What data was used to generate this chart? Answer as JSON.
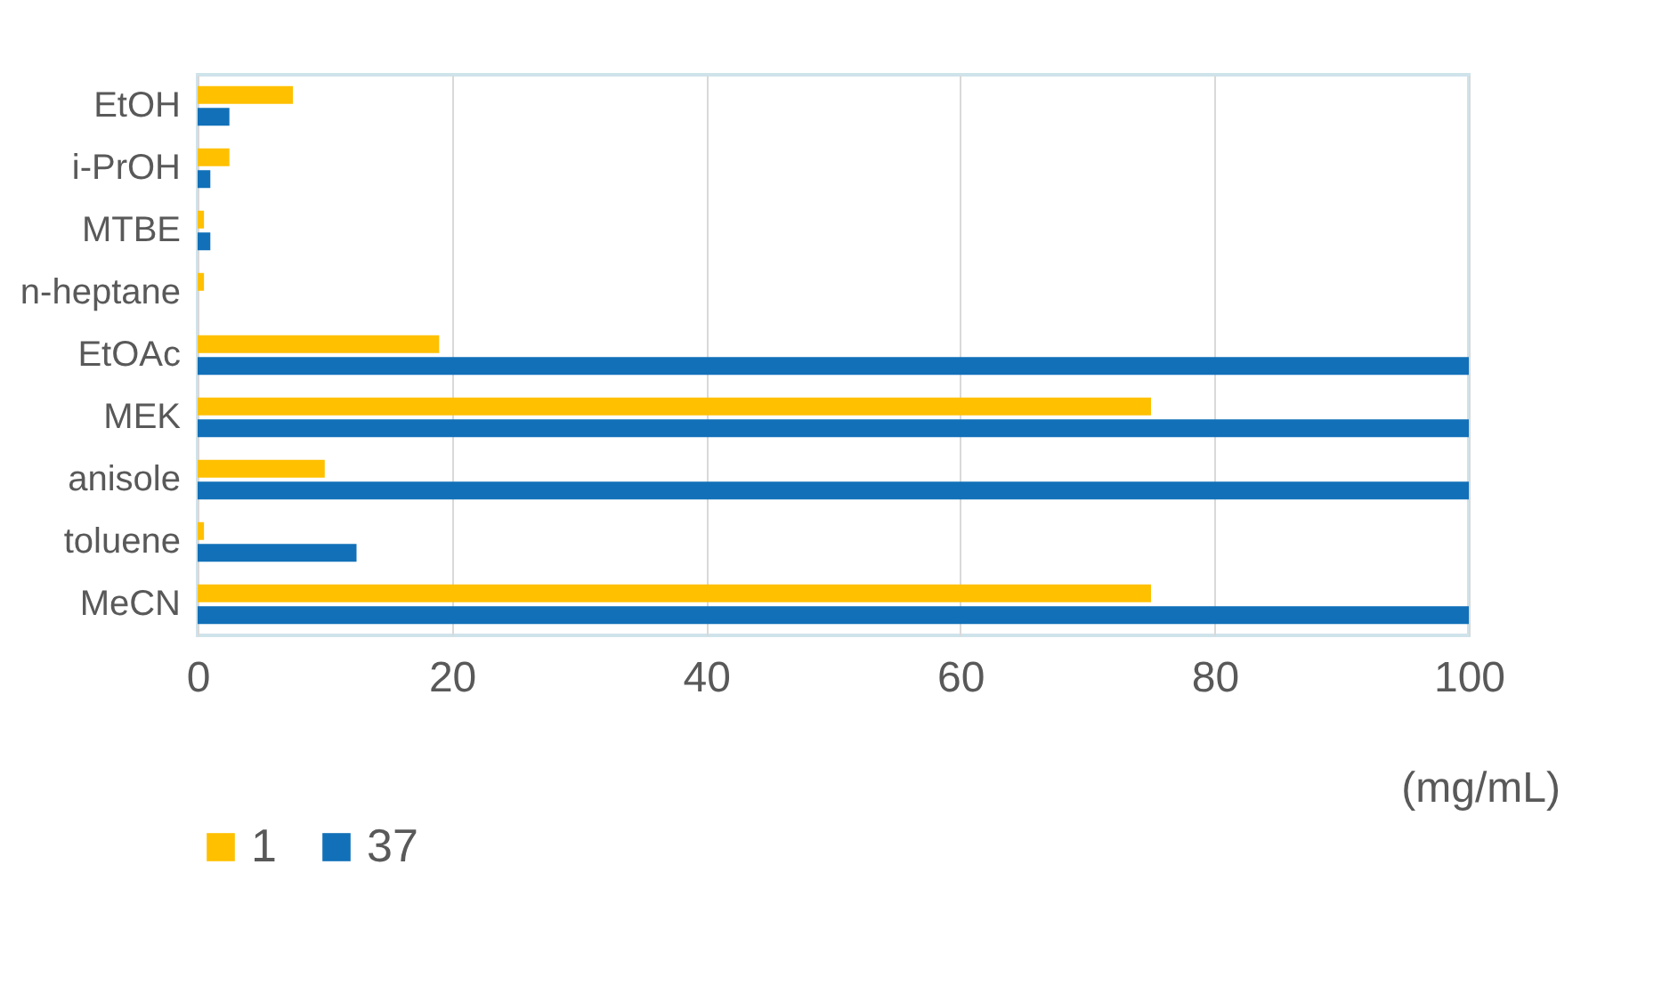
{
  "chart_data": {
    "type": "bar",
    "orientation": "horizontal",
    "xlabel": "(mg/mL)",
    "categories": [
      "EtOH",
      "i-PrOH",
      "MTBE",
      "n-heptane",
      "EtOAc",
      "MEK",
      "anisole",
      "toluene",
      "MeCN"
    ],
    "series": [
      {
        "name": "1",
        "color": "#ffc000",
        "values": [
          7.5,
          2.5,
          0.5,
          0.5,
          19,
          75,
          10,
          0.5,
          75
        ]
      },
      {
        "name": "37",
        "color": "#1170b8",
        "values": [
          2.5,
          1,
          1,
          0,
          100,
          100,
          100,
          12.5,
          100
        ]
      }
    ],
    "xlim": [
      0,
      100
    ],
    "xticks": [
      0,
      20,
      40,
      60,
      80,
      100
    ],
    "grid": "x",
    "legend": "bottom"
  }
}
